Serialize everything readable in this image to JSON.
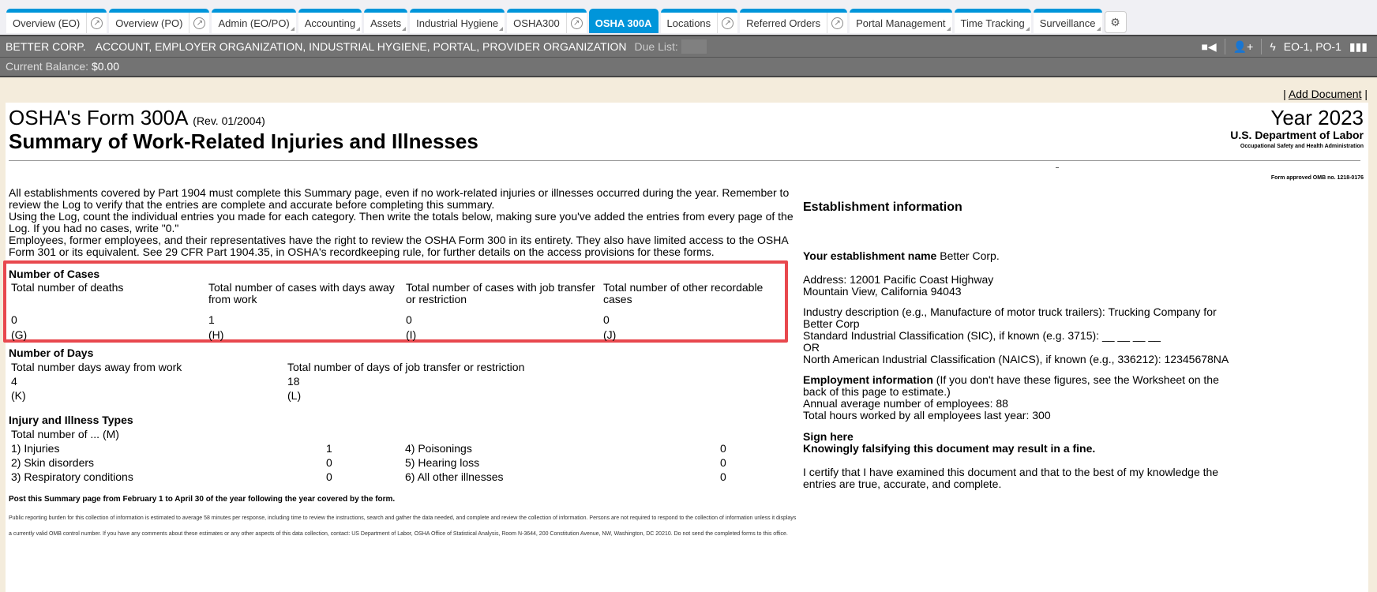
{
  "tabs": [
    {
      "label": "Overview (EO)",
      "ext": true
    },
    {
      "label": "Overview (PO)",
      "ext": true
    },
    {
      "label": "Admin (EO/PO)",
      "caret": true
    },
    {
      "label": "Accounting",
      "caret": true
    },
    {
      "label": "Assets",
      "caret": true
    },
    {
      "label": "Industrial Hygiene",
      "caret": true
    },
    {
      "label": "OSHA300",
      "ext": true
    },
    {
      "label": "OSHA 300A",
      "active": true
    },
    {
      "label": "Locations",
      "ext": true
    },
    {
      "label": "Referred Orders",
      "ext": true
    },
    {
      "label": "Portal Management",
      "caret": true
    },
    {
      "label": "Time Tracking",
      "caret": true
    },
    {
      "label": "Surveillance",
      "caret": true
    }
  ],
  "header": {
    "company": "BETTER CORP.",
    "roles": "ACCOUNT, EMPLOYER ORGANIZATION, INDUSTRIAL HYGIENE, PORTAL, PROVIDER ORGANIZATION",
    "due_list_label": "Due List:",
    "org_ids": "EO-1, PO-1",
    "balance_label": "Current Balance:",
    "balance_value": "$0.00"
  },
  "add_document": "Add Document",
  "form": {
    "title": "OSHA's Form 300A",
    "rev": "(Rev. 01/2004)",
    "subtitle": "Summary of Work-Related Injuries and Illnesses",
    "year": "Year 2023",
    "dept": "U.S. Department of Labor",
    "agency": "Occupational Safety and Health Administration",
    "omb": "Form approved OMB no. 1218-0176",
    "intro": [
      "All establishments covered by Part 1904 must complete this Summary page, even if no work-related injuries or illnesses occurred during the year. Remember to review the Log to verify that the entries are complete and accurate before completing this summary.",
      "Using the Log, count the individual entries you made for each category. Then write the totals below, making sure you've added the entries from every page of the Log. If you had no cases, write \"0.\"",
      "Employees, former employees, and their representatives have the right to review the OSHA Form 300 in its entirety. They also have limited access to the OSHA Form 301 or its equivalent. See 29 CFR Part 1904.35, in OSHA's recordkeeping rule, for further details on the access provisions for these forms."
    ],
    "cases": {
      "heading": "Number of Cases",
      "cols": [
        {
          "label": "Total number of deaths",
          "value": "0",
          "code": "(G)"
        },
        {
          "label": "Total number of cases with days away from work",
          "value": "1",
          "code": "(H)"
        },
        {
          "label": "Total number of cases with job transfer or restriction",
          "value": "0",
          "code": "(I)"
        },
        {
          "label": "Total number of other recordable cases",
          "value": "0",
          "code": "(J)"
        }
      ]
    },
    "days": {
      "heading": "Number of Days",
      "cols": [
        {
          "label": "Total number days away from work",
          "value": "4",
          "code": "(K)"
        },
        {
          "label": "Total number of days of job transfer or restriction",
          "value": "18",
          "code": "(L)"
        }
      ]
    },
    "types": {
      "heading": "Injury and Illness Types",
      "sub": "Total number of ... (M)",
      "items": [
        {
          "label": "1) Injuries",
          "value": "1"
        },
        {
          "label": "2) Skin disorders",
          "value": "0"
        },
        {
          "label": "3) Respiratory conditions",
          "value": "0"
        },
        {
          "label": "4) Poisonings",
          "value": "0"
        },
        {
          "label": "5) Hearing loss",
          "value": "0"
        },
        {
          "label": "6) All other illnesses",
          "value": "0"
        }
      ]
    },
    "post": "Post this Summary page from February 1 to April 30 of the year following the year covered by the form.",
    "burden": "Public reporting burden for this collection of information is estimated to average 58 minutes per response, including time to review the instructions, search and gather the data needed, and complete and review the collection of information. Persons are not required to respond to the collection of information unless it displays a currently valid OMB control number. If you have any comments about these estimates or any other aspects of this data collection, contact: US Department of Labor, OSHA Office of Statistical Analysis, Room N-3644, 200 Constitution Avenue, NW, Washington, DC 20210. Do not send the completed forms to this office.",
    "est": {
      "heading": "Establishment information",
      "name_label": "Your establishment name",
      "name": "Better Corp.",
      "address1": "Address: 12001 Pacific Coast Highway",
      "address2": "Mountain View, California 94043",
      "industry": "Industry description (e.g., Manufacture of motor truck trailers): Trucking Company for Better Corp",
      "sic": "Standard Industrial Classification (SIC), if known (e.g. 3715): __ __ __ __",
      "or": "OR",
      "naics": "North American Industrial Classification (NAICS), if known (e.g., 336212): 12345678NA",
      "emp_label": "Employment information",
      "emp_note": "(If you don't have these figures, see the Worksheet on the back of this page to estimate.)",
      "avg": "Annual average number of employees: 88",
      "hours": "Total hours worked by all employees last year: 300",
      "sign": "Sign here",
      "fine": "Knowingly falsifying this document may result in a fine.",
      "certify": "I certify that I have examined this document and that to the best of my knowledge the entries are true, accurate, and complete."
    }
  }
}
